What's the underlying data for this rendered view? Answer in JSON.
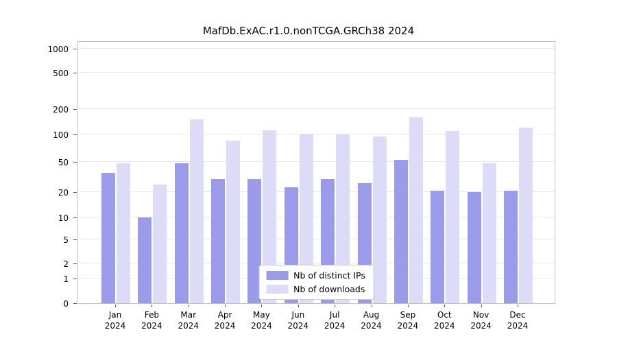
{
  "chart_data": {
    "type": "bar",
    "title": "MafDb.ExAC.r1.0.nonTCGA.GRCh38 2024",
    "categories": [
      "Jan",
      "Feb",
      "Mar",
      "Apr",
      "May",
      "Jun",
      "Jul",
      "Aug",
      "Sep",
      "Oct",
      "Nov",
      "Dec"
    ],
    "year": "2024",
    "series": [
      {
        "name": "Nb of distinct IPs",
        "color": "#9b9bec",
        "values": [
          36,
          10,
          48,
          30,
          30,
          23,
          30,
          26,
          53,
          21,
          20,
          21
        ]
      },
      {
        "name": "Nb of downloads",
        "color": "#dcdcf8",
        "values": [
          48,
          25,
          150,
          85,
          112,
          103,
          101,
          95,
          160,
          110,
          48,
          120
        ]
      }
    ],
    "yticks": [
      0,
      1,
      2,
      5,
      10,
      20,
      50,
      100,
      200,
      500,
      1000
    ],
    "ylabel": "",
    "xlabel": "",
    "scale": "log-like",
    "grid": "horizontal",
    "legend_position": "bottom-center-inside"
  }
}
